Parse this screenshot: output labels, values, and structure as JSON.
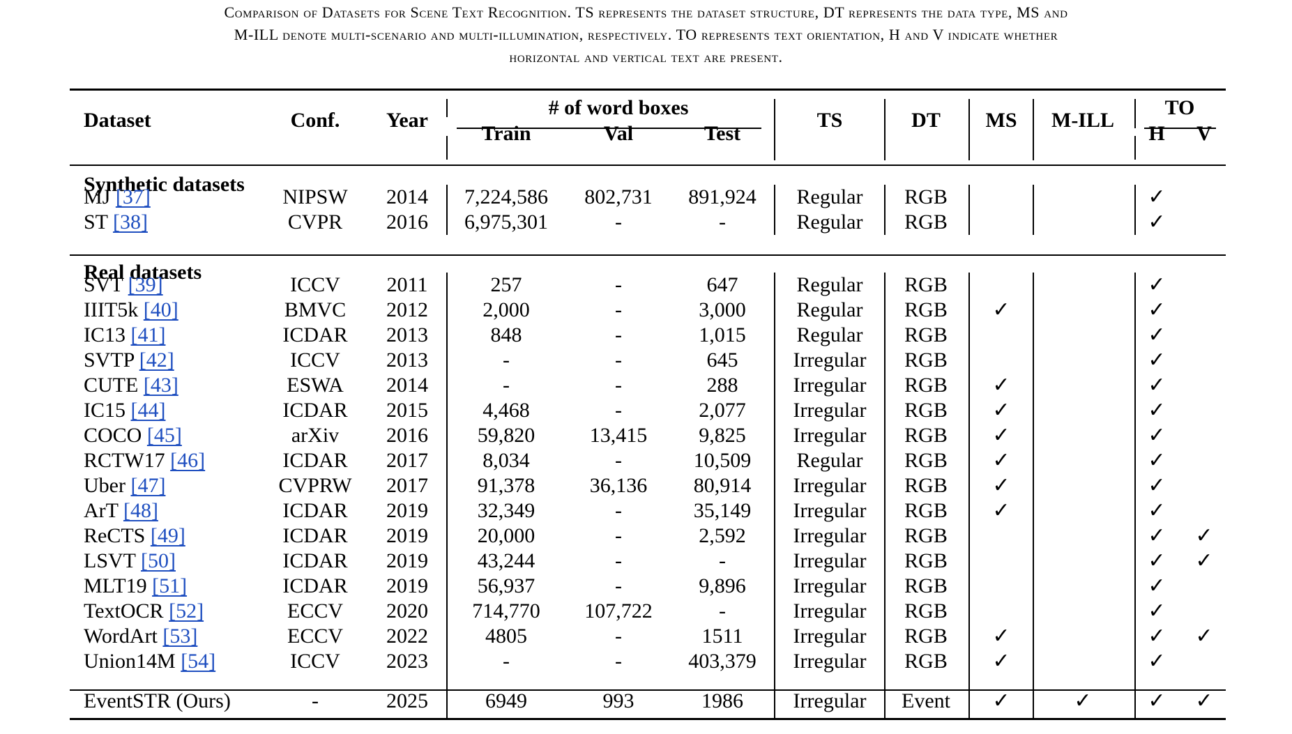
{
  "caption": {
    "line1": "Comparison of Datasets for Scene Text Recognition. TS represents the dataset structure, DT represents the data type, MS and",
    "line2": "M-ILL denote multi-scenario and multi-illumination, respectively. TO represents text orientation, H and V indicate whether",
    "line3": "horizontal and vertical text are present."
  },
  "headers": {
    "dataset": "Dataset",
    "conf": "Conf.",
    "year": "Year",
    "word_boxes": "# of word boxes",
    "train": "Train",
    "val": "Val",
    "test": "Test",
    "ts": "TS",
    "dt": "DT",
    "ms": "MS",
    "mill": "M-ILL",
    "to": "TO",
    "h": "H",
    "v": "V"
  },
  "check_mark": "✓",
  "groups": [
    {
      "title": "Synthetic datasets",
      "rows": [
        {
          "name": "MJ",
          "ref": "[37]",
          "conf": "NIPSW",
          "year": "2014",
          "train": "7,224,586",
          "val": "802,731",
          "test": "891,924",
          "ts": "Regular",
          "dt": "RGB",
          "ms": false,
          "mill": false,
          "h": true,
          "v": false
        },
        {
          "name": "ST",
          "ref": "[38]",
          "conf": "CVPR",
          "year": "2016",
          "train": "6,975,301",
          "val": "-",
          "test": "-",
          "ts": "Regular",
          "dt": "RGB",
          "ms": false,
          "mill": false,
          "h": true,
          "v": false
        }
      ]
    },
    {
      "title": "Real datasets",
      "rows": [
        {
          "name": "SVT",
          "ref": "[39]",
          "conf": "ICCV",
          "year": "2011",
          "train": "257",
          "val": "-",
          "test": "647",
          "ts": "Regular",
          "dt": "RGB",
          "ms": false,
          "mill": false,
          "h": true,
          "v": false
        },
        {
          "name": "IIIT5k",
          "ref": "[40]",
          "conf": "BMVC",
          "year": "2012",
          "train": "2,000",
          "val": "-",
          "test": "3,000",
          "ts": "Regular",
          "dt": "RGB",
          "ms": true,
          "mill": false,
          "h": true,
          "v": false
        },
        {
          "name": "IC13",
          "ref": "[41]",
          "conf": "ICDAR",
          "year": "2013",
          "train": "848",
          "val": "-",
          "test": "1,015",
          "ts": "Regular",
          "dt": "RGB",
          "ms": false,
          "mill": false,
          "h": true,
          "v": false
        },
        {
          "name": "SVTP",
          "ref": "[42]",
          "conf": "ICCV",
          "year": "2013",
          "train": "-",
          "val": "-",
          "test": "645",
          "ts": "Irregular",
          "dt": "RGB",
          "ms": false,
          "mill": false,
          "h": true,
          "v": false
        },
        {
          "name": "CUTE",
          "ref": "[43]",
          "conf": "ESWA",
          "year": "2014",
          "train": "-",
          "val": "-",
          "test": "288",
          "ts": "Irregular",
          "dt": "RGB",
          "ms": true,
          "mill": false,
          "h": true,
          "v": false
        },
        {
          "name": "IC15",
          "ref": "[44]",
          "conf": "ICDAR",
          "year": "2015",
          "train": "4,468",
          "val": "-",
          "test": "2,077",
          "ts": "Irregular",
          "dt": "RGB",
          "ms": true,
          "mill": false,
          "h": true,
          "v": false
        },
        {
          "name": "COCO",
          "ref": "[45]",
          "conf": "arXiv",
          "year": "2016",
          "train": "59,820",
          "val": "13,415",
          "test": "9,825",
          "ts": "Irregular",
          "dt": "RGB",
          "ms": true,
          "mill": false,
          "h": true,
          "v": false
        },
        {
          "name": "RCTW17",
          "ref": "[46]",
          "conf": "ICDAR",
          "year": "2017",
          "train": "8,034",
          "val": "-",
          "test": "10,509",
          "ts": "Regular",
          "dt": "RGB",
          "ms": true,
          "mill": false,
          "h": true,
          "v": false
        },
        {
          "name": "Uber",
          "ref": "[47]",
          "conf": "CVPRW",
          "year": "2017",
          "train": "91,378",
          "val": "36,136",
          "test": "80,914",
          "ts": "Irregular",
          "dt": "RGB",
          "ms": true,
          "mill": false,
          "h": true,
          "v": false
        },
        {
          "name": "ArT",
          "ref": "[48]",
          "conf": "ICDAR",
          "year": "2019",
          "train": "32,349",
          "val": "-",
          "test": "35,149",
          "ts": "Irregular",
          "dt": "RGB",
          "ms": true,
          "mill": false,
          "h": true,
          "v": false
        },
        {
          "name": "ReCTS",
          "ref": "[49]",
          "conf": "ICDAR",
          "year": "2019",
          "train": "20,000",
          "val": "-",
          "test": "2,592",
          "ts": "Irregular",
          "dt": "RGB",
          "ms": false,
          "mill": false,
          "h": true,
          "v": true
        },
        {
          "name": "LSVT",
          "ref": "[50]",
          "conf": "ICDAR",
          "year": "2019",
          "train": "43,244",
          "val": "-",
          "test": "-",
          "ts": "Irregular",
          "dt": "RGB",
          "ms": false,
          "mill": false,
          "h": true,
          "v": true
        },
        {
          "name": "MLT19",
          "ref": "[51]",
          "conf": "ICDAR",
          "year": "2019",
          "train": "56,937",
          "val": "-",
          "test": "9,896",
          "ts": "Irregular",
          "dt": "RGB",
          "ms": false,
          "mill": false,
          "h": true,
          "v": false
        },
        {
          "name": "TextOCR",
          "ref": "[52]",
          "conf": "ECCV",
          "year": "2020",
          "train": "714,770",
          "val": "107,722",
          "test": "-",
          "ts": "Irregular",
          "dt": "RGB",
          "ms": false,
          "mill": false,
          "h": true,
          "v": false
        },
        {
          "name": "WordArt",
          "ref": "[53]",
          "conf": "ECCV",
          "year": "2022",
          "train": "4805",
          "val": "-",
          "test": "1511",
          "ts": "Irregular",
          "dt": "RGB",
          "ms": true,
          "mill": false,
          "h": true,
          "v": true
        },
        {
          "name": "Union14M",
          "ref": "[54]",
          "conf": "ICCV",
          "year": "2023",
          "train": "-",
          "val": "-",
          "test": "403,379",
          "ts": "Irregular",
          "dt": "RGB",
          "ms": true,
          "mill": false,
          "h": true,
          "v": false
        }
      ]
    }
  ],
  "ours": {
    "name": "EventSTR (Ours)",
    "ref": "",
    "conf": "-",
    "year": "2025",
    "train": "6949",
    "val": "993",
    "test": "1986",
    "ts": "Irregular",
    "dt": "Event",
    "ms": true,
    "mill": true,
    "h": true,
    "v": true
  }
}
